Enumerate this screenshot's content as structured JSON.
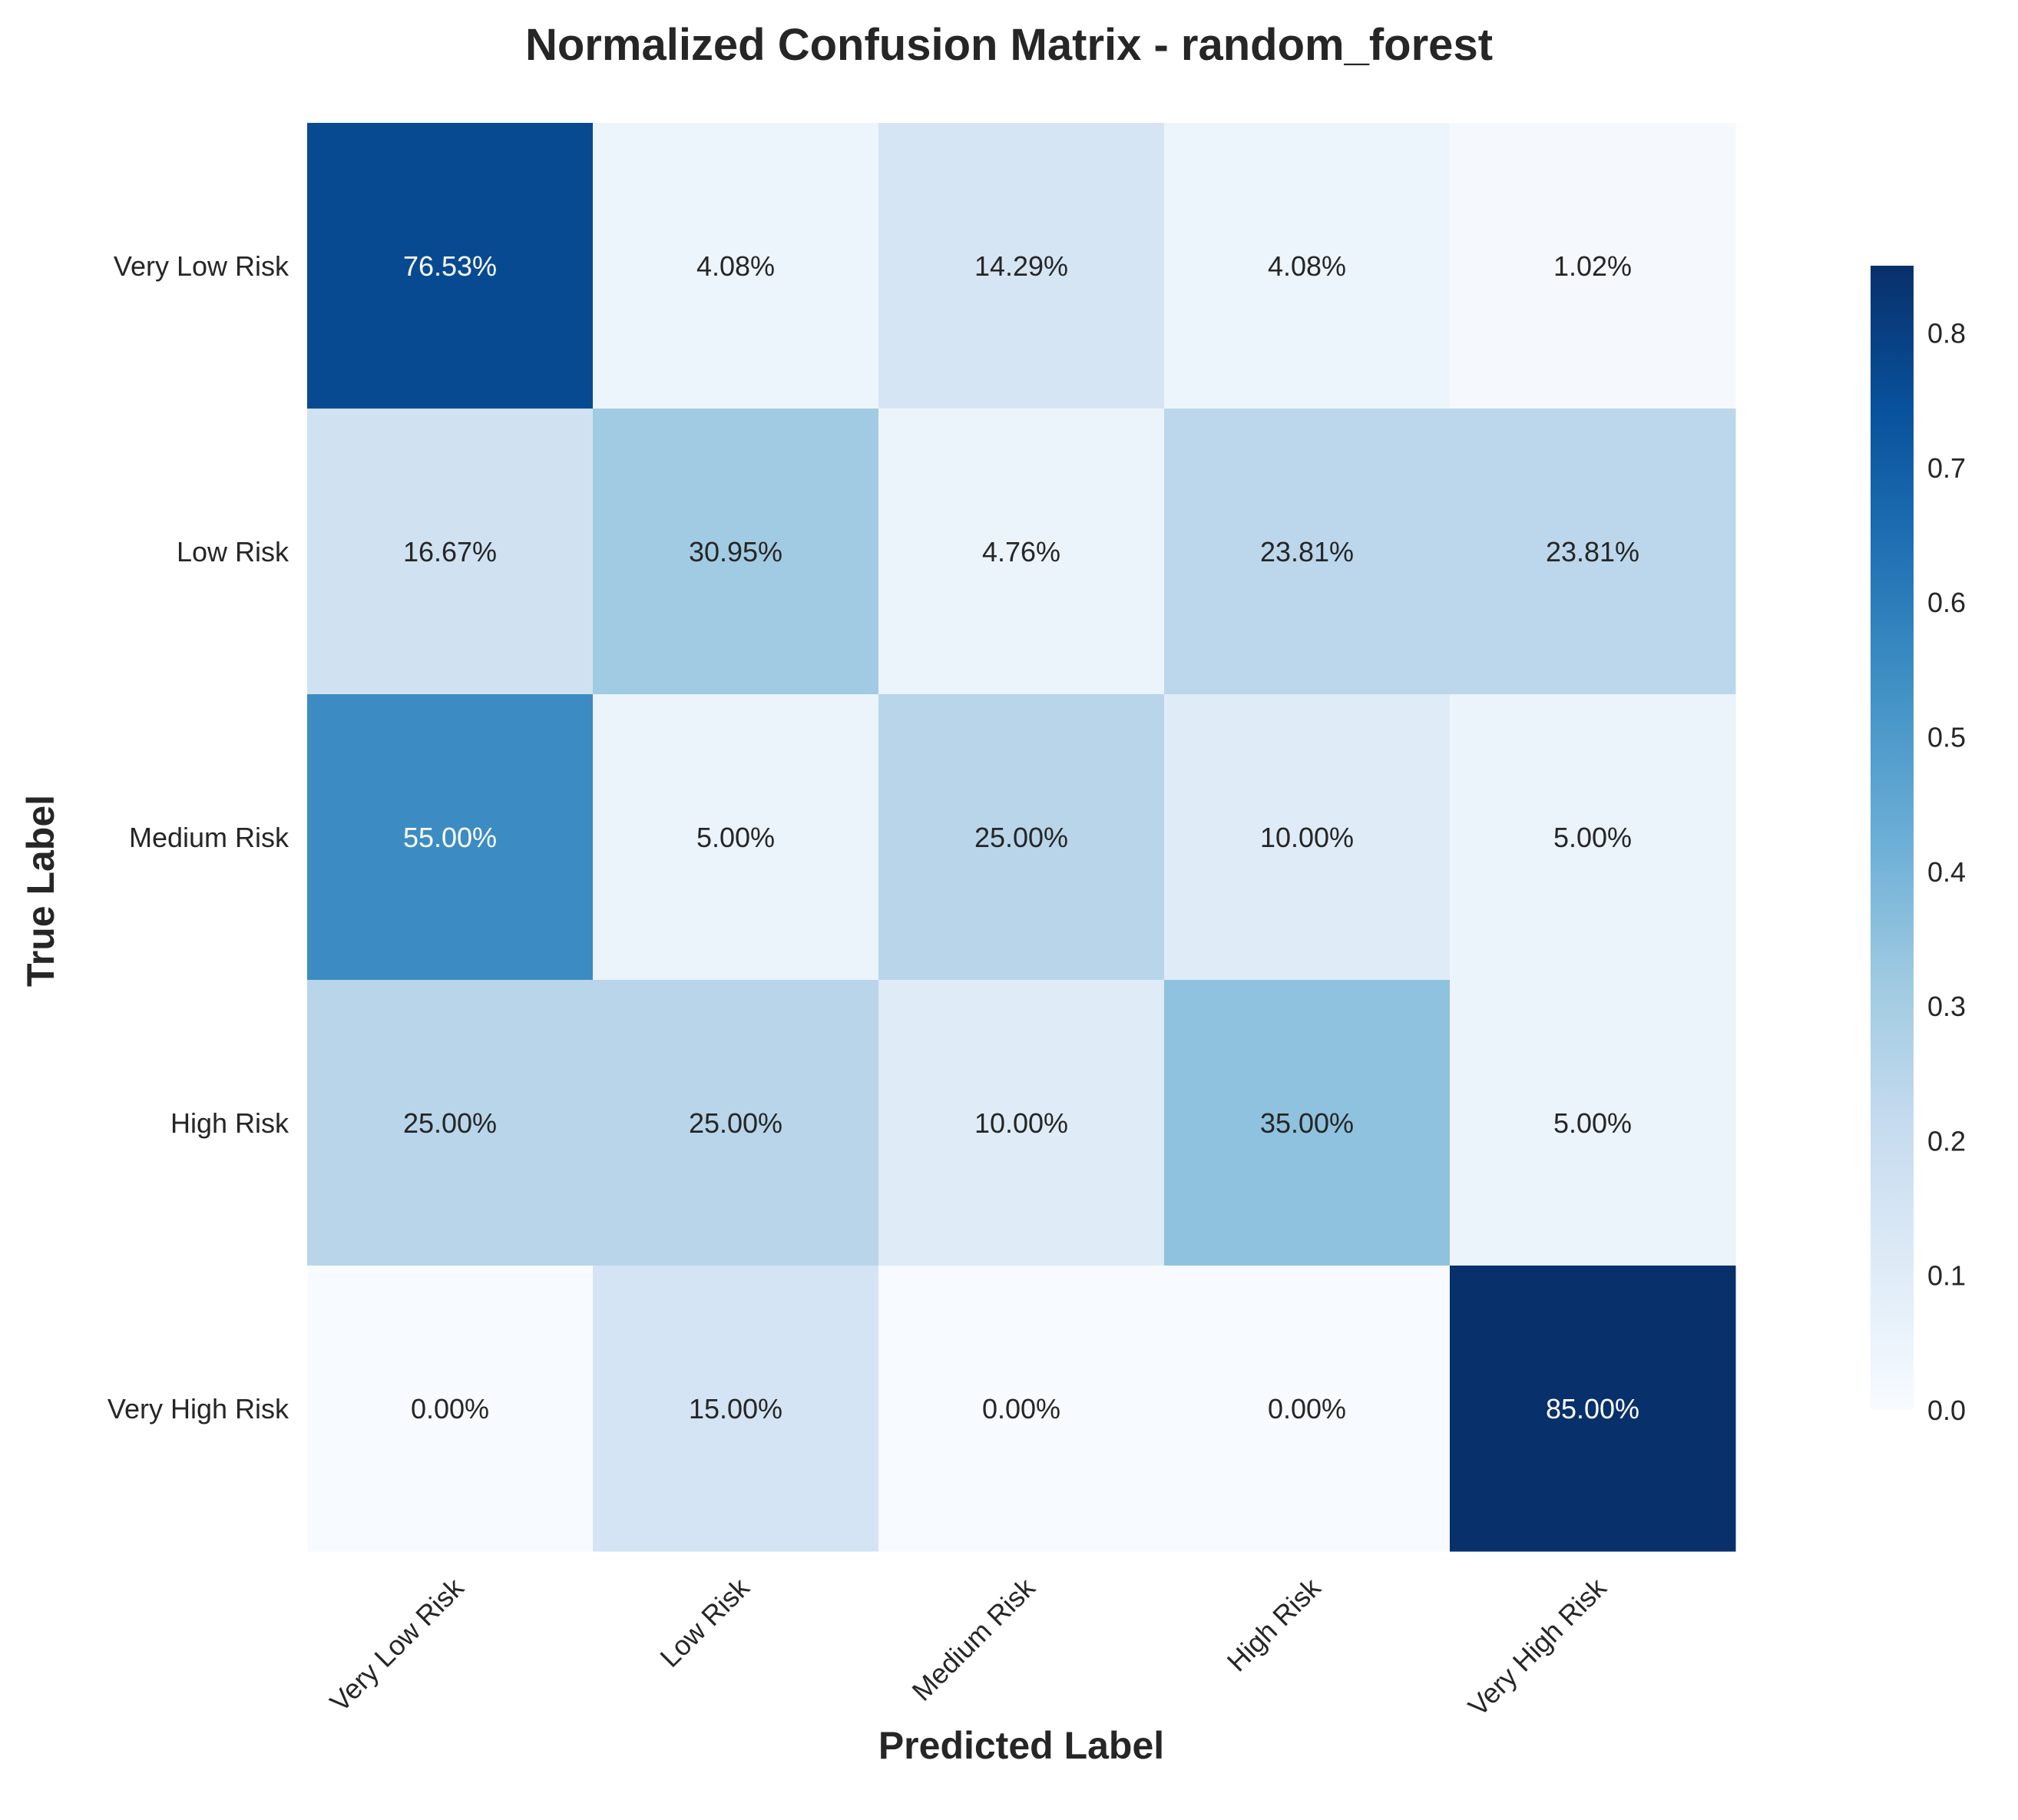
{
  "chart_data": {
    "type": "heatmap",
    "title": "Normalized Confusion Matrix - random_forest",
    "xlabel": "Predicted Label",
    "ylabel": "True Label",
    "x_categories": [
      "Very Low Risk",
      "Low Risk",
      "Medium Risk",
      "High Risk",
      "Very High Risk"
    ],
    "y_categories": [
      "Very Low Risk",
      "Low Risk",
      "Medium Risk",
      "High Risk",
      "Very High Risk"
    ],
    "values": [
      [
        0.7653,
        0.0408,
        0.1429,
        0.0408,
        0.0102
      ],
      [
        0.1667,
        0.3095,
        0.0476,
        0.2381,
        0.2381
      ],
      [
        0.55,
        0.05,
        0.25,
        0.1,
        0.05
      ],
      [
        0.25,
        0.25,
        0.1,
        0.35,
        0.05
      ],
      [
        0.0,
        0.15,
        0.0,
        0.0,
        0.85
      ]
    ],
    "cell_labels": [
      [
        "76.53%",
        "4.08%",
        "14.29%",
        "4.08%",
        "1.02%"
      ],
      [
        "16.67%",
        "30.95%",
        "4.76%",
        "23.81%",
        "23.81%"
      ],
      [
        "55.00%",
        "5.00%",
        "25.00%",
        "10.00%",
        "5.00%"
      ],
      [
        "25.00%",
        "25.00%",
        "10.00%",
        "35.00%",
        "5.00%"
      ],
      [
        "0.00%",
        "15.00%",
        "0.00%",
        "0.00%",
        "85.00%"
      ]
    ],
    "colormap": "Blues",
    "vmin": 0.0,
    "vmax": 0.85,
    "colorbar_ticks": [
      "0.0",
      "0.1",
      "0.2",
      "0.3",
      "0.4",
      "0.5",
      "0.6",
      "0.7",
      "0.8"
    ],
    "colors": {
      "low": "#f7fbff",
      "high": "#08306b",
      "text_dark": "#262626",
      "text_light": "#ffffff"
    },
    "grid": false
  }
}
